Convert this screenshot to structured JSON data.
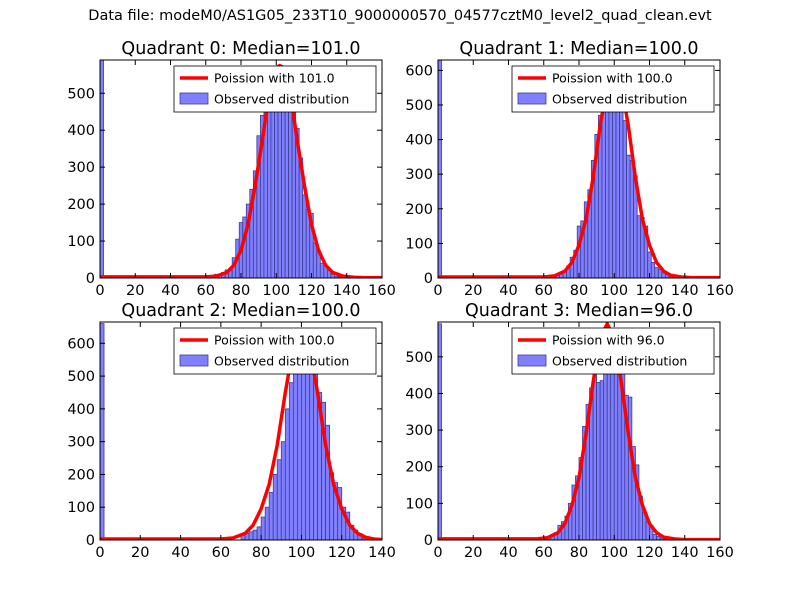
{
  "figure": {
    "suptitle": "Data file: modeM0/AS1G05_233T10_9000000570_04577cztM0_level2_quad_clean.evt"
  },
  "colors": {
    "hist_fill": "#8080ff",
    "hist_edge": "#3c3c96",
    "poisson_line": "#ff0000",
    "axes": "#000000"
  },
  "chart_data": [
    {
      "type": "bar",
      "title": "Quadrant 0: Median=101.0",
      "xlim": [
        0,
        160
      ],
      "ylim": [
        0,
        590
      ],
      "xticks": [
        "0",
        "20",
        "40",
        "60",
        "80",
        "100",
        "120",
        "140",
        "160"
      ],
      "yticks": [
        "0",
        "100",
        "200",
        "300",
        "400",
        "500"
      ],
      "ytick_values": [
        0,
        100,
        200,
        300,
        400,
        500
      ],
      "xtick_values": [
        0,
        20,
        40,
        60,
        80,
        100,
        120,
        140,
        160
      ],
      "legend": [
        "Poission with 101.0",
        "Observed distribution"
      ],
      "legend_position": "upper right",
      "bins": [
        [
          0,
          590
        ],
        [
          61,
          2
        ],
        [
          63,
          5
        ],
        [
          65,
          10
        ],
        [
          67,
          10
        ],
        [
          69,
          15
        ],
        [
          71,
          22
        ],
        [
          73,
          25
        ],
        [
          75,
          55
        ],
        [
          77,
          105
        ],
        [
          79,
          150
        ],
        [
          81,
          165
        ],
        [
          83,
          200
        ],
        [
          85,
          240
        ],
        [
          87,
          290
        ],
        [
          89,
          385
        ],
        [
          91,
          440
        ],
        [
          93,
          505
        ],
        [
          95,
          540
        ],
        [
          97,
          555
        ],
        [
          99,
          540
        ],
        [
          101,
          570
        ],
        [
          103,
          555
        ],
        [
          105,
          545
        ],
        [
          107,
          500
        ],
        [
          109,
          460
        ],
        [
          111,
          405
        ],
        [
          113,
          325
        ],
        [
          115,
          225
        ],
        [
          117,
          185
        ],
        [
          119,
          175
        ],
        [
          121,
          95
        ],
        [
          123,
          75
        ],
        [
          125,
          40
        ],
        [
          127,
          35
        ],
        [
          129,
          20
        ],
        [
          131,
          10
        ],
        [
          133,
          5
        ],
        [
          135,
          3
        ],
        [
          137,
          2
        ],
        [
          139,
          1
        ],
        [
          141,
          2
        ]
      ],
      "poisson": {
        "lambda": 101.0,
        "x": [
          0,
          60,
          66,
          72,
          76,
          80,
          84,
          88,
          92,
          96,
          100,
          102,
          104,
          108,
          112,
          116,
          120,
          124,
          128,
          132,
          138,
          144,
          150,
          160
        ],
        "y": [
          3,
          3,
          5,
          15,
          35,
          75,
          145,
          250,
          370,
          500,
          570,
          575,
          570,
          500,
          370,
          250,
          145,
          75,
          35,
          15,
          5,
          2,
          1,
          1
        ]
      }
    },
    {
      "type": "bar",
      "title": "Quadrant 1: Median=100.0",
      "xlim": [
        0,
        160
      ],
      "ylim": [
        0,
        630
      ],
      "xticks": [
        "0",
        "20",
        "40",
        "60",
        "80",
        "100",
        "120",
        "140",
        "160"
      ],
      "yticks": [
        "0",
        "100",
        "200",
        "300",
        "400",
        "500",
        "600"
      ],
      "ytick_values": [
        0,
        100,
        200,
        300,
        400,
        500,
        600
      ],
      "xtick_values": [
        0,
        20,
        40,
        60,
        80,
        100,
        120,
        140,
        160
      ],
      "legend": [
        "Poission with 100.0",
        "Observed distribution"
      ],
      "legend_position": "upper right",
      "bins": [
        [
          0,
          630
        ],
        [
          61,
          3
        ],
        [
          65,
          5
        ],
        [
          67,
          10
        ],
        [
          69,
          15
        ],
        [
          71,
          20
        ],
        [
          73,
          35
        ],
        [
          75,
          60
        ],
        [
          77,
          80
        ],
        [
          79,
          150
        ],
        [
          81,
          165
        ],
        [
          83,
          220
        ],
        [
          85,
          255
        ],
        [
          87,
          340
        ],
        [
          89,
          415
        ],
        [
          91,
          470
        ],
        [
          93,
          530
        ],
        [
          95,
          580
        ],
        [
          97,
          610
        ],
        [
          99,
          545
        ],
        [
          101,
          570
        ],
        [
          103,
          500
        ],
        [
          105,
          455
        ],
        [
          107,
          355
        ],
        [
          109,
          340
        ],
        [
          111,
          295
        ],
        [
          113,
          180
        ],
        [
          115,
          175
        ],
        [
          117,
          150
        ],
        [
          119,
          75
        ],
        [
          121,
          45
        ],
        [
          123,
          30
        ],
        [
          125,
          25
        ],
        [
          127,
          15
        ],
        [
          129,
          10
        ],
        [
          131,
          5
        ],
        [
          133,
          3
        ],
        [
          135,
          2
        ],
        [
          137,
          1
        ],
        [
          139,
          1
        ]
      ],
      "poisson": {
        "lambda": 100.0,
        "x": [
          0,
          60,
          66,
          72,
          76,
          80,
          84,
          88,
          92,
          96,
          100,
          104,
          108,
          112,
          116,
          120,
          124,
          128,
          132,
          138,
          144,
          150,
          160
        ],
        "y": [
          3,
          3,
          6,
          20,
          45,
          95,
          170,
          290,
          440,
          560,
          605,
          560,
          440,
          290,
          170,
          95,
          45,
          20,
          8,
          3,
          1,
          1,
          1
        ]
      }
    },
    {
      "type": "bar",
      "title": "Quadrant 2: Median=100.0",
      "xlim": [
        0,
        140
      ],
      "ylim": [
        0,
        665
      ],
      "xticks": [
        "0",
        "20",
        "40",
        "60",
        "80",
        "100",
        "120",
        "140"
      ],
      "yticks": [
        "0",
        "100",
        "200",
        "300",
        "400",
        "500",
        "600"
      ],
      "ytick_values": [
        0,
        100,
        200,
        300,
        400,
        500,
        600
      ],
      "xtick_values": [
        0,
        20,
        40,
        60,
        80,
        100,
        120,
        140
      ],
      "legend": [
        "Poission with 100.0",
        "Observed distribution"
      ],
      "legend_position": "upper right",
      "bins": [
        [
          0,
          660
        ],
        [
          70,
          15
        ],
        [
          72,
          20
        ],
        [
          74,
          25
        ],
        [
          76,
          30
        ],
        [
          78,
          40
        ],
        [
          80,
          70
        ],
        [
          82,
          100
        ],
        [
          84,
          145
        ],
        [
          86,
          200
        ],
        [
          88,
          245
        ],
        [
          90,
          300
        ],
        [
          92,
          400
        ],
        [
          94,
          480
        ],
        [
          96,
          545
        ],
        [
          98,
          620
        ],
        [
          100,
          570
        ],
        [
          102,
          640
        ],
        [
          104,
          625
        ],
        [
          106,
          550
        ],
        [
          108,
          450
        ],
        [
          110,
          420
        ],
        [
          112,
          350
        ],
        [
          114,
          205
        ],
        [
          116,
          175
        ],
        [
          118,
          160
        ],
        [
          120,
          100
        ],
        [
          122,
          85
        ],
        [
          124,
          45
        ],
        [
          126,
          30
        ],
        [
          128,
          20
        ],
        [
          130,
          5
        ],
        [
          132,
          3
        ]
      ],
      "poisson": {
        "lambda": 100.0,
        "x": [
          0,
          60,
          66,
          72,
          76,
          80,
          84,
          88,
          92,
          96,
          100,
          104,
          108,
          112,
          116,
          120,
          124,
          128,
          132,
          136,
          140
        ],
        "y": [
          3,
          3,
          6,
          20,
          45,
          95,
          170,
          290,
          450,
          590,
          630,
          590,
          450,
          290,
          170,
          95,
          45,
          20,
          8,
          3,
          1
        ]
      }
    },
    {
      "type": "bar",
      "title": "Quadrant 3: Median=96.0",
      "xlim": [
        0,
        160
      ],
      "ylim": [
        0,
        595
      ],
      "xticks": [
        "0",
        "20",
        "40",
        "60",
        "80",
        "100",
        "120",
        "140",
        "160"
      ],
      "yticks": [
        "0",
        "100",
        "200",
        "300",
        "400",
        "500"
      ],
      "ytick_values": [
        0,
        100,
        200,
        300,
        400,
        500
      ],
      "xtick_values": [
        0,
        20,
        40,
        60,
        80,
        100,
        120,
        140,
        160
      ],
      "legend": [
        "Poission with 96.0",
        "Observed distribution"
      ],
      "legend_position": "upper right",
      "bins": [
        [
          0,
          590
        ],
        [
          13,
          3
        ],
        [
          30,
          2
        ],
        [
          56,
          5
        ],
        [
          60,
          3
        ],
        [
          62,
          10
        ],
        [
          64,
          15
        ],
        [
          66,
          20
        ],
        [
          68,
          40
        ],
        [
          70,
          50
        ],
        [
          72,
          65
        ],
        [
          74,
          100
        ],
        [
          76,
          150
        ],
        [
          78,
          175
        ],
        [
          80,
          225
        ],
        [
          82,
          310
        ],
        [
          84,
          370
        ],
        [
          86,
          415
        ],
        [
          88,
          475
        ],
        [
          90,
          430
        ],
        [
          92,
          435
        ],
        [
          94,
          540
        ],
        [
          96,
          500
        ],
        [
          98,
          525
        ],
        [
          100,
          470
        ],
        [
          102,
          495
        ],
        [
          104,
          455
        ],
        [
          106,
          395
        ],
        [
          108,
          390
        ],
        [
          110,
          255
        ],
        [
          112,
          205
        ],
        [
          114,
          120
        ],
        [
          116,
          75
        ],
        [
          118,
          50
        ],
        [
          120,
          40
        ],
        [
          122,
          15
        ],
        [
          124,
          10
        ],
        [
          126,
          5
        ],
        [
          128,
          3
        ],
        [
          130,
          2
        ]
      ],
      "poisson": {
        "lambda": 96.0,
        "x": [
          0,
          56,
          62,
          68,
          72,
          76,
          80,
          84,
          88,
          92,
          96,
          100,
          104,
          108,
          112,
          116,
          120,
          124,
          128,
          134,
          140,
          160
        ],
        "y": [
          3,
          3,
          6,
          20,
          45,
          95,
          170,
          290,
          430,
          550,
          590,
          550,
          430,
          290,
          170,
          95,
          45,
          20,
          8,
          3,
          1,
          1
        ]
      }
    }
  ]
}
